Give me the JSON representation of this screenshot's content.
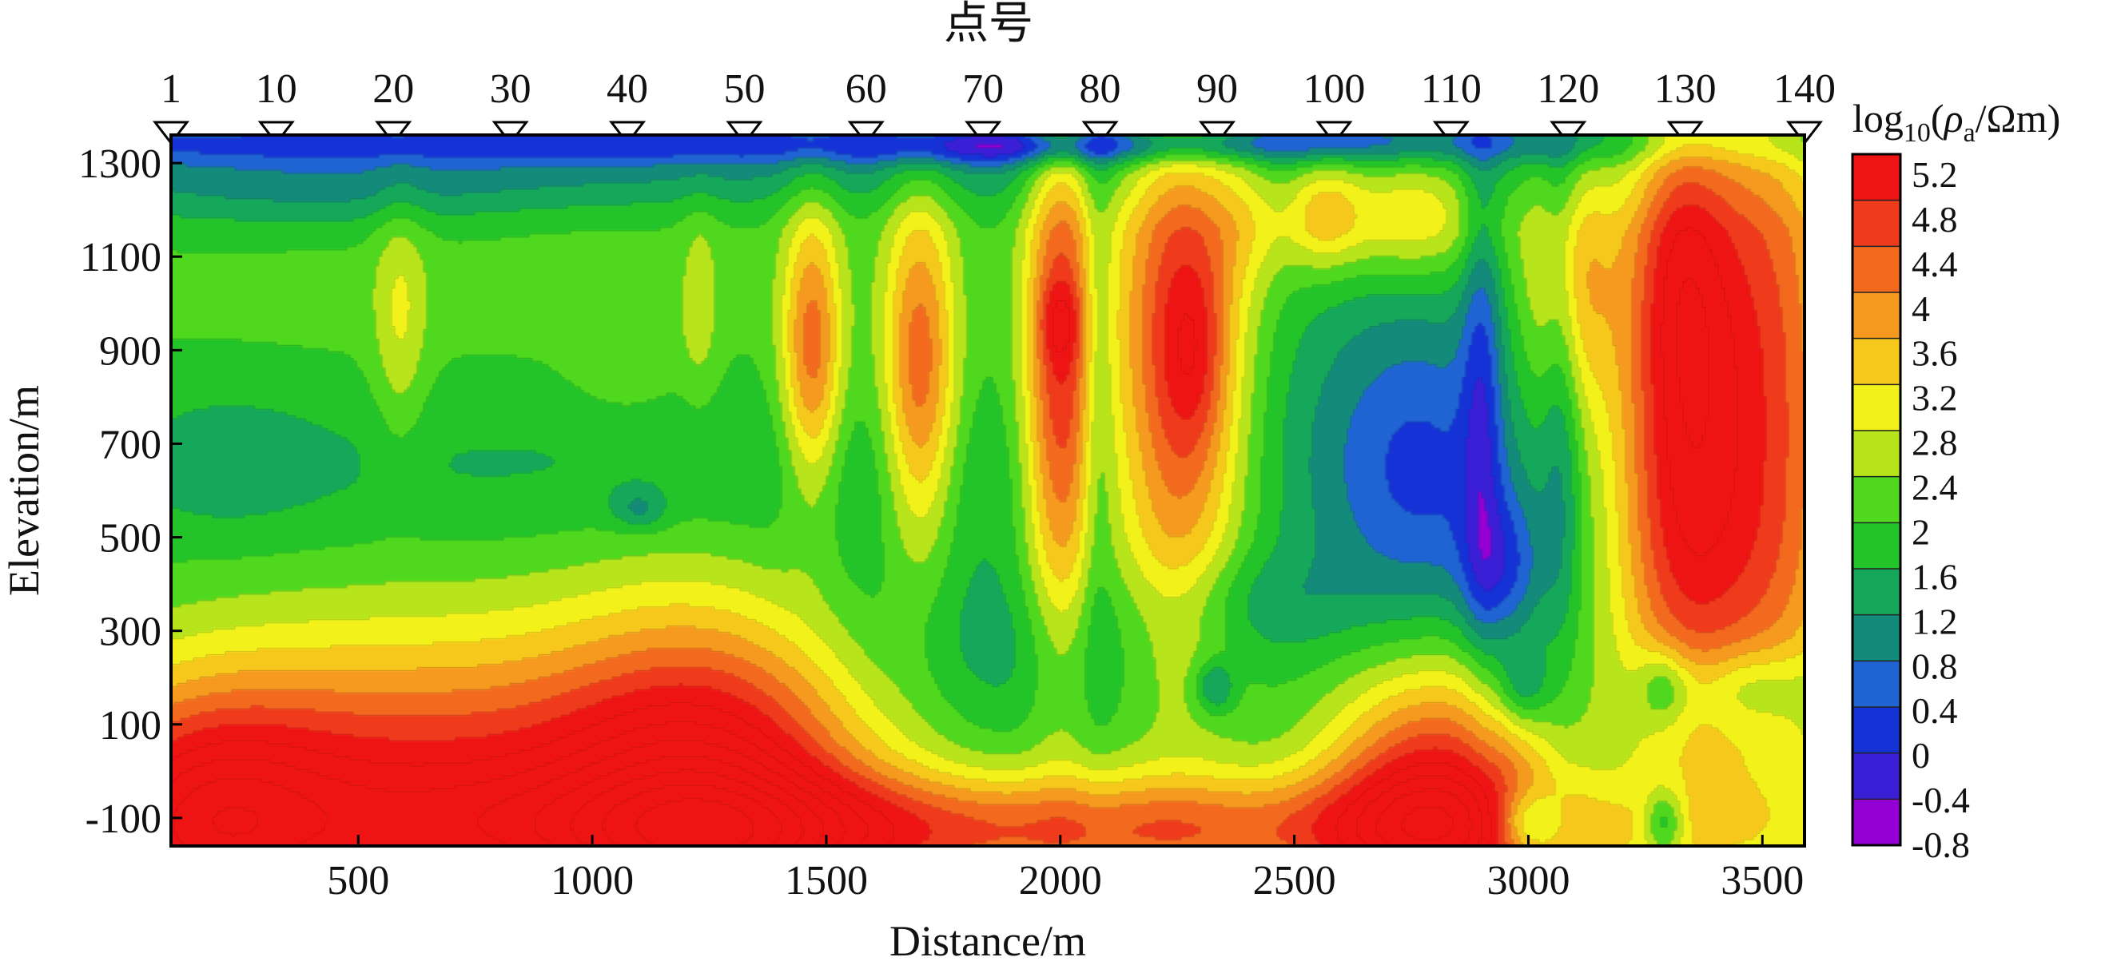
{
  "chart_data": {
    "type": "heatmap",
    "title": "",
    "top_axis_label": "点号",
    "xlabel": "Distance/m",
    "ylabel": "Elevation/m",
    "colorbar_label": "log10(ρa/Ωm)",
    "colorbar_title": {
      "base": "log",
      "sub": "10",
      "open": "(",
      "rho": "ρ",
      "rho_sub": "a",
      "unit": "/Ωm)"
    },
    "xlim": [
      100,
      3590
    ],
    "ylim": [
      -160,
      1360
    ],
    "xticks": [
      500,
      1000,
      1500,
      2000,
      2500,
      3000,
      3500
    ],
    "yticks": [
      1300,
      1100,
      900,
      700,
      500,
      300,
      100,
      -100
    ],
    "stations": [
      {
        "label": "1",
        "x": 100
      },
      {
        "label": "10",
        "x": 325
      },
      {
        "label": "20",
        "x": 575
      },
      {
        "label": "30",
        "x": 825
      },
      {
        "label": "40",
        "x": 1075
      },
      {
        "label": "50",
        "x": 1325
      },
      {
        "label": "60",
        "x": 1585
      },
      {
        "label": "70",
        "x": 1835
      },
      {
        "label": "80",
        "x": 2085
      },
      {
        "label": "90",
        "x": 2335
      },
      {
        "label": "100",
        "x": 2585
      },
      {
        "label": "110",
        "x": 2835
      },
      {
        "label": "120",
        "x": 3085
      },
      {
        "label": "130",
        "x": 3335
      },
      {
        "label": "140",
        "x": 3590
      }
    ],
    "colorbar_levels": [
      -0.8,
      -0.4,
      0,
      0.4,
      0.8,
      1.2,
      1.6,
      2,
      2.4,
      2.8,
      3.2,
      3.6,
      4,
      4.4,
      4.8,
      5.2
    ],
    "colorbar_tick_labels": [
      "-0.8",
      "-0.4",
      "0",
      "0.4",
      "0.8",
      "1.2",
      "1.6",
      "2",
      "2.4",
      "2.8",
      "3.2",
      "3.6",
      "4",
      "4.4",
      "4.8",
      "5.2"
    ],
    "colorscale": [
      "#9400d3",
      "#3a1fd6",
      "#1432d6",
      "#1f64d2",
      "#138a7a",
      "#16a85a",
      "#22c42a",
      "#4fd81e",
      "#b8e41c",
      "#f2f21a",
      "#f6c81c",
      "#f59a1f",
      "#f36a1f",
      "#ef3a1c",
      "#ee1414"
    ],
    "value_range": [
      -0.8,
      5.5
    ],
    "background_value": 2.0,
    "anomalies": [
      {
        "x": 1300,
        "y": 1340,
        "sx": 1600,
        "sy": 30,
        "v": -1.2
      },
      {
        "x": 1000,
        "y": 1270,
        "sx": 900,
        "sy": 45,
        "v": -0.4
      },
      {
        "x": 400,
        "y": 1230,
        "sx": 350,
        "sy": 70,
        "v": -0.5
      },
      {
        "x": 1900,
        "y": 1330,
        "sx": 200,
        "sy": 25,
        "v": -0.6
      },
      {
        "x": 2300,
        "y": 1340,
        "sx": 300,
        "sy": 25,
        "v": -0.5
      },
      {
        "x": 700,
        "y": 1050,
        "sx": 900,
        "sy": 160,
        "v": 0.3
      },
      {
        "x": 1000,
        "y": 640,
        "sx": 700,
        "sy": 120,
        "v": -0.4
      },
      {
        "x": 220,
        "y": 660,
        "sx": 150,
        "sy": 120,
        "v": -0.4
      },
      {
        "x": 1950,
        "y": 250,
        "sx": 260,
        "sy": 120,
        "v": -0.5
      },
      {
        "x": 1650,
        "y": 420,
        "sx": 250,
        "sy": 150,
        "v": -0.3
      },
      {
        "x": 590,
        "y": 960,
        "sx": 40,
        "sy": 200,
        "v": 0.8
      },
      {
        "x": 1230,
        "y": 1000,
        "sx": 30,
        "sy": 150,
        "v": 0.6
      },
      {
        "x": 1070,
        "y": 870,
        "sx": 80,
        "sy": 80,
        "v": 0.4
      },
      {
        "x": 620,
        "y": -60,
        "sx": 450,
        "sy": 250,
        "v": 3.2
      },
      {
        "x": 1260,
        "y": -90,
        "sx": 240,
        "sy": 300,
        "v": 3.5
      },
      {
        "x": 150,
        "y": -120,
        "sx": 200,
        "sy": 200,
        "v": 2.5
      },
      {
        "x": 2000,
        "y": -130,
        "sx": 900,
        "sy": 90,
        "v": 2.5
      },
      {
        "x": 2800,
        "y": -60,
        "sx": 170,
        "sy": 210,
        "v": 3.4
      },
      {
        "x": 1470,
        "y": 900,
        "sx": 45,
        "sy": 220,
        "v": 2.3
      },
      {
        "x": 1700,
        "y": 850,
        "sx": 55,
        "sy": 280,
        "v": 2.4
      },
      {
        "x": 2000,
        "y": 850,
        "sx": 55,
        "sy": 420,
        "v": 2.9
      },
      {
        "x": 2000,
        "y": 960,
        "sx": 30,
        "sy": 60,
        "v": 0.8
      },
      {
        "x": 2250,
        "y": 900,
        "sx": 100,
        "sy": 480,
        "v": 2.8
      },
      {
        "x": 2290,
        "y": 900,
        "sx": 50,
        "sy": 160,
        "v": 0.9
      },
      {
        "x": 2400,
        "y": 1200,
        "sx": 60,
        "sy": 120,
        "v": 0.8
      },
      {
        "x": 2560,
        "y": 1200,
        "sx": 60,
        "sy": 90,
        "v": 1.5
      },
      {
        "x": 2750,
        "y": 1200,
        "sx": 120,
        "sy": 100,
        "v": 1.6
      },
      {
        "x": 3090,
        "y": 1050,
        "sx": 70,
        "sy": 220,
        "v": 1.8
      },
      {
        "x": 3320,
        "y": 800,
        "sx": 100,
        "sy": 500,
        "v": 3.0
      },
      {
        "x": 3320,
        "y": 1100,
        "sx": 60,
        "sy": 200,
        "v": 0.6
      },
      {
        "x": 3520,
        "y": 850,
        "sx": 120,
        "sy": 600,
        "v": 2.5
      },
      {
        "x": 3470,
        "y": 180,
        "sx": 100,
        "sy": 60,
        "v": -1.0
      },
      {
        "x": 3420,
        "y": 400,
        "sx": 200,
        "sy": 200,
        "v": 0.5
      },
      {
        "x": 2800,
        "y": 630,
        "sx": 150,
        "sy": 260,
        "v": -1.4
      },
      {
        "x": 2620,
        "y": 700,
        "sx": 150,
        "sy": 300,
        "v": -0.5
      },
      {
        "x": 2950,
        "y": 420,
        "sx": 60,
        "sy": 120,
        "v": -1.3
      },
      {
        "x": 2900,
        "y": 850,
        "sx": 30,
        "sy": 400,
        "v": -1.1
      },
      {
        "x": 3070,
        "y": 900,
        "sx": 30,
        "sy": 450,
        "v": -1.0
      },
      {
        "x": 2400,
        "y": 360,
        "sx": 150,
        "sy": 80,
        "v": -0.6
      },
      {
        "x": 2080,
        "y": 850,
        "sx": 25,
        "sy": 400,
        "v": -0.8
      },
      {
        "x": 2330,
        "y": 180,
        "sx": 30,
        "sy": 40,
        "v": -1.2
      },
      {
        "x": 2990,
        "y": 180,
        "sx": 40,
        "sy": 60,
        "v": -1.2
      },
      {
        "x": 3290,
        "y": 180,
        "sx": 40,
        "sy": 60,
        "v": -1.2
      },
      {
        "x": 3000,
        "y": -110,
        "sx": 50,
        "sy": 50,
        "v": -1.8
      },
      {
        "x": 3290,
        "y": -110,
        "sx": 30,
        "sy": 50,
        "v": -1.5
      },
      {
        "x": 1100,
        "y": 560,
        "sx": 40,
        "sy": 30,
        "v": -0.8
      }
    ]
  }
}
